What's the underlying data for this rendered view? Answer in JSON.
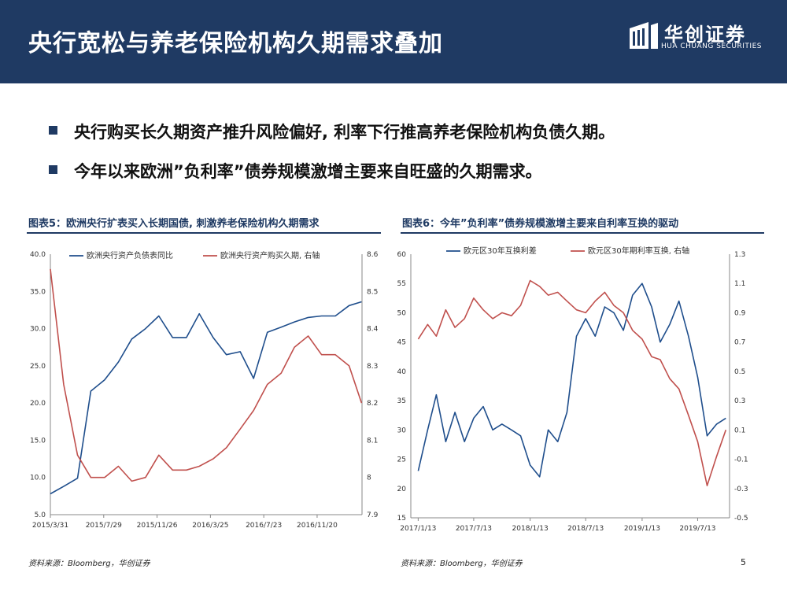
{
  "header": {
    "title": "央行宽松与养老保险机构久期需求叠加",
    "logo_cn": "华创证券",
    "logo_en": "HUA CHUANG SECURITIES"
  },
  "bullets": [
    "央行购买长久期资产推升风险偏好, 利率下行推高养老保险机构负债久期。",
    "今年以来欧洲”负利率”债券规模激增主要来自旺盛的久期需求。"
  ],
  "colors": {
    "header_bg": "#1f3a63",
    "series_blue": "#1f4e8c",
    "series_red": "#c0504d"
  },
  "panels": {
    "left": {
      "title": "图表5：欧洲央行扩表买入长期国债, 刺激养老保险机构久期需求",
      "source": "资料来源：Bloomberg，华创证券"
    },
    "right": {
      "title": "图表6：今年”负利率”债券规模激增主要来自利率互换的驱动",
      "source": "资料来源：Bloomberg，华创证券"
    }
  },
  "page_number": "5",
  "chart_data": [
    {
      "type": "line",
      "x_ticks": [
        "2015/3/31",
        "2015/7/29",
        "2015/11/26",
        "2016/3/25",
        "2016/7/23",
        "2016/11/20"
      ],
      "ylim_left": [
        5.0,
        40.0
      ],
      "yticks_left": [
        "40.0",
        "35.0",
        "30.0",
        "25.0",
        "20.0",
        "15.0",
        "10.0",
        "5.0"
      ],
      "ylim_right": [
        7.9,
        8.6
      ],
      "yticks_right": [
        "8.6",
        "8.5",
        "8.4",
        "8.3",
        "8.2",
        "8.1",
        "8",
        "7.9"
      ],
      "series": [
        {
          "name": "欧洲央行资产负债表同比",
          "axis": "left",
          "x": [
            "2015/3/31",
            "2015/4/30",
            "2015/5/31",
            "2015/6/30",
            "2015/7/31",
            "2015/8/31",
            "2015/9/30",
            "2015/10/31",
            "2015/11/30",
            "2015/12/31",
            "2016/1/31",
            "2016/2/29",
            "2016/3/31",
            "2016/4/30",
            "2016/5/31",
            "2016/6/30",
            "2016/7/31",
            "2016/8/31",
            "2016/9/30",
            "2016/10/31",
            "2016/11/30",
            "2016/12/31",
            "2017/1/31",
            "2017/2/28"
          ],
          "values": [
            7.8,
            8.8,
            9.9,
            21.6,
            23.1,
            25.5,
            28.6,
            30.0,
            31.7,
            28.8,
            28.8,
            32.0,
            28.8,
            26.5,
            26.9,
            23.3,
            29.5,
            30.2,
            30.9,
            31.5,
            31.7,
            31.7,
            33.1,
            33.6
          ]
        },
        {
          "name": "欧洲央行资产购买久期, 右轴",
          "axis": "right",
          "x": [
            "2015/3/31",
            "2015/4/30",
            "2015/5/31",
            "2015/6/30",
            "2015/7/31",
            "2015/8/31",
            "2015/9/30",
            "2015/10/31",
            "2015/11/30",
            "2015/12/31",
            "2016/1/31",
            "2016/2/29",
            "2016/3/31",
            "2016/4/30",
            "2016/5/31",
            "2016/6/30",
            "2016/7/31",
            "2016/8/31",
            "2016/9/30",
            "2016/10/31",
            "2016/11/30",
            "2016/12/31",
            "2017/1/31",
            "2017/2/28"
          ],
          "values": [
            8.56,
            8.25,
            8.06,
            8.0,
            8.0,
            8.03,
            7.99,
            8.0,
            8.06,
            8.02,
            8.02,
            8.03,
            8.05,
            8.08,
            8.13,
            8.18,
            8.25,
            8.28,
            8.35,
            8.38,
            8.33,
            8.33,
            8.3,
            8.2
          ]
        }
      ]
    },
    {
      "type": "line",
      "x_ticks": [
        "2017/1/13",
        "2017/7/13",
        "2018/1/13",
        "2018/7/13",
        "2019/1/13",
        "2019/7/13"
      ],
      "ylim_left": [
        15,
        60
      ],
      "yticks_left": [
        "60",
        "55",
        "50",
        "45",
        "40",
        "35",
        "30",
        "25",
        "20",
        "15"
      ],
      "ylim_right": [
        -0.5,
        1.3
      ],
      "yticks_right": [
        "1.3",
        "1.1",
        "0.9",
        "0.7",
        "0.5",
        "0.3",
        "0.1",
        "-0.1",
        "-0.3",
        "-0.5"
      ],
      "series": [
        {
          "name": "欧元区30年互换利差",
          "axis": "left",
          "x": [
            "2017/1/13",
            "2017/2/13",
            "2017/3/13",
            "2017/4/13",
            "2017/5/13",
            "2017/6/13",
            "2017/7/13",
            "2017/8/13",
            "2017/9/13",
            "2017/10/13",
            "2017/11/13",
            "2017/12/13",
            "2018/1/13",
            "2018/2/13",
            "2018/3/13",
            "2018/4/13",
            "2018/5/13",
            "2018/6/13",
            "2018/7/13",
            "2018/8/13",
            "2018/9/13",
            "2018/10/13",
            "2018/11/13",
            "2018/12/13",
            "2019/1/13",
            "2019/2/13",
            "2019/3/13",
            "2019/4/13",
            "2019/5/13",
            "2019/6/13",
            "2019/7/13",
            "2019/8/13",
            "2019/9/13",
            "2019/10/13"
          ],
          "values": [
            23,
            30,
            36,
            28,
            33,
            28,
            32,
            34,
            30,
            31,
            30,
            29,
            24,
            22,
            30,
            28,
            33,
            46,
            49,
            46,
            51,
            50,
            47,
            53,
            55,
            51,
            45,
            48,
            52,
            46,
            39,
            29,
            31,
            32
          ]
        },
        {
          "name": "欧元区30年期利率互换, 右轴",
          "axis": "right",
          "x": [
            "2017/1/13",
            "2017/2/13",
            "2017/3/13",
            "2017/4/13",
            "2017/5/13",
            "2017/6/13",
            "2017/7/13",
            "2017/8/13",
            "2017/9/13",
            "2017/10/13",
            "2017/11/13",
            "2017/12/13",
            "2018/1/13",
            "2018/2/13",
            "2018/3/13",
            "2018/4/13",
            "2018/5/13",
            "2018/6/13",
            "2018/7/13",
            "2018/8/13",
            "2018/9/13",
            "2018/10/13",
            "2018/11/13",
            "2018/12/13",
            "2019/1/13",
            "2019/2/13",
            "2019/3/13",
            "2019/4/13",
            "2019/5/13",
            "2019/6/13",
            "2019/7/13",
            "2019/8/13",
            "2019/9/13",
            "2019/10/13"
          ],
          "values": [
            0.72,
            0.82,
            0.74,
            0.92,
            0.8,
            0.86,
            1.0,
            0.92,
            0.86,
            0.9,
            0.88,
            0.95,
            1.12,
            1.08,
            1.02,
            1.04,
            0.98,
            0.92,
            0.9,
            0.98,
            1.04,
            0.95,
            0.9,
            0.78,
            0.72,
            0.6,
            0.58,
            0.45,
            0.38,
            0.2,
            0.02,
            -0.28,
            -0.08,
            0.1
          ]
        }
      ]
    }
  ]
}
